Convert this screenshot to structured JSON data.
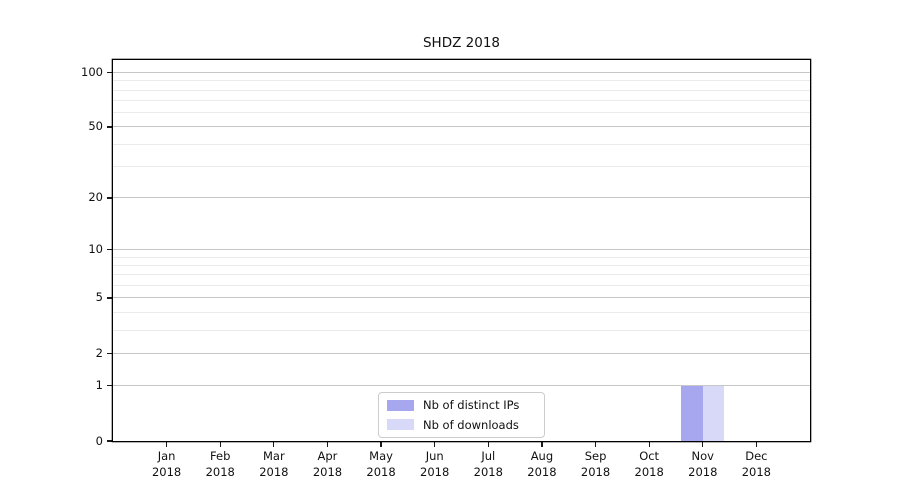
{
  "chart_data": {
    "type": "bar",
    "title": "SHDZ 2018",
    "categories": [
      "Jan",
      "Feb",
      "Mar",
      "Apr",
      "May",
      "Jun",
      "Jul",
      "Aug",
      "Sep",
      "Oct",
      "Nov",
      "Dec"
    ],
    "year_label": "2018",
    "series": [
      {
        "name": "Nb of distinct IPs",
        "color": "#a7a7f0",
        "values": [
          0,
          0,
          0,
          0,
          0,
          0,
          0,
          0,
          0,
          0,
          1,
          0
        ]
      },
      {
        "name": "Nb of downloads",
        "color": "#d8d8f8",
        "values": [
          0,
          0,
          0,
          0,
          0,
          0,
          0,
          0,
          0,
          0,
          1,
          0
        ]
      }
    ],
    "xlabel": "",
    "ylabel": "",
    "yscale": "log1p",
    "ylim": [
      0,
      117
    ],
    "y_major_ticks": [
      0,
      1,
      2,
      5,
      10,
      20,
      50,
      100
    ],
    "y_minor_ticks": [
      3,
      4,
      6,
      7,
      8,
      9,
      30,
      40,
      60,
      70,
      80,
      90
    ],
    "grid": true,
    "grid_major_color": "#c6c6c6",
    "grid_minor_color": "#ebebeb",
    "spine_color": "#000000",
    "legend_position": "lower center"
  }
}
